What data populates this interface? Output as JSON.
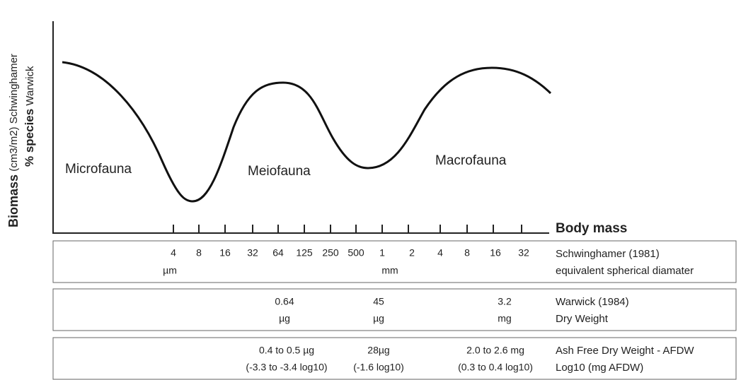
{
  "y_axis_label": {
    "line1_bold": "Biomass",
    "line1": "(cm3/m2) Schwinghamer",
    "line2_bold": "% species",
    "line2": "Warwick"
  },
  "x_axis_label": "Body mass",
  "curve_labels": [
    "Microfauna",
    "Meiofauna",
    "Macrofauna"
  ],
  "scale_ticks": [
    "4",
    "8",
    "16",
    "32",
    "64",
    "125",
    "250",
    "500",
    "1",
    "2",
    "4",
    "8",
    "16",
    "32"
  ],
  "rows": [
    {
      "cells": [
        [
          "µm"
        ],
        [
          "mm"
        ]
      ],
      "label": [
        "Schwinghamer (1981)",
        "equivalent spherical diamater"
      ]
    },
    {
      "cells": [
        [
          "0.64",
          "µg"
        ],
        [
          "45",
          "µg"
        ],
        [
          "3.2",
          "mg"
        ]
      ],
      "label": [
        "Warwick (1984)",
        "Dry Weight"
      ]
    },
    {
      "cells": [
        [
          "0.4 to 0.5 µg",
          "(-3.3 to -3.4 log10)"
        ],
        [
          "28µg",
          "(-1.6 log10)"
        ],
        [
          "2.0 to 2.6 mg",
          "(0.3 to 0.4 log10)"
        ]
      ],
      "label": [
        "Ash Free Dry Weight - AFDW",
        "Log10 (mg AFDW)"
      ]
    }
  ]
}
